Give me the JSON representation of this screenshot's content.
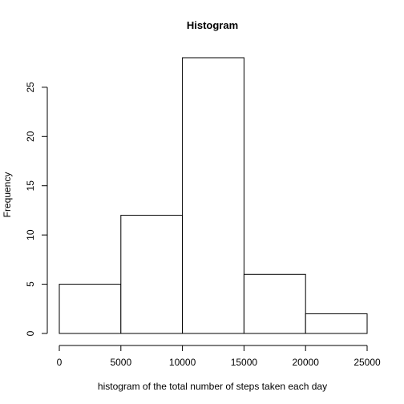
{
  "chart_data": {
    "type": "bar",
    "subtype": "histogram",
    "title": "Histogram",
    "xlabel": "histogram of the total number of steps taken each day",
    "ylabel": "Frequency",
    "bins": [
      {
        "start": 0,
        "end": 5000,
        "count": 5
      },
      {
        "start": 5000,
        "end": 10000,
        "count": 12
      },
      {
        "start": 10000,
        "end": 15000,
        "count": 28
      },
      {
        "start": 15000,
        "end": 20000,
        "count": 6
      },
      {
        "start": 20000,
        "end": 25000,
        "count": 2
      }
    ],
    "xlim": [
      0,
      25000
    ],
    "ylim": [
      0,
      28
    ],
    "x_ticks": [
      0,
      5000,
      10000,
      15000,
      20000,
      25000
    ],
    "y_ticks": [
      0,
      5,
      10,
      15,
      20,
      25
    ],
    "bar_fill": "#ffffff",
    "bar_stroke": "#000000",
    "grid": false,
    "legend": "none"
  }
}
